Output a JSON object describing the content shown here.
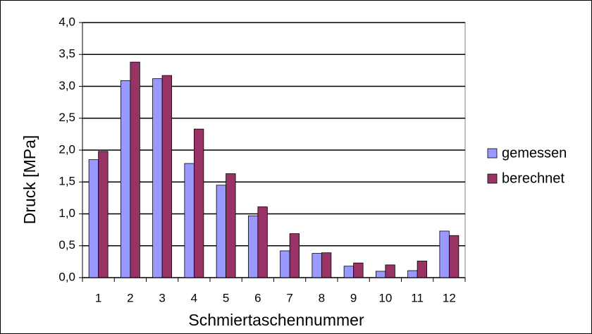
{
  "chart_data": {
    "type": "bar",
    "x_label": "Schmiertaschennummer",
    "y_label": "Druck [MPa]",
    "categories": [
      "1",
      "2",
      "3",
      "4",
      "5",
      "6",
      "7",
      "8",
      "9",
      "10",
      "11",
      "12"
    ],
    "series": [
      {
        "name": "gemessen",
        "color": "#9999ff",
        "values": [
          1.85,
          3.09,
          3.12,
          1.79,
          1.45,
          0.97,
          0.42,
          0.38,
          0.18,
          0.1,
          0.11,
          0.73
        ]
      },
      {
        "name": "berechnet",
        "color": "#993366",
        "values": [
          1.98,
          3.38,
          3.17,
          2.33,
          1.63,
          1.11,
          0.69,
          0.39,
          0.23,
          0.2,
          0.26,
          0.66
        ]
      }
    ],
    "ylim": [
      0,
      4
    ],
    "yticks": [
      {
        "value": 0,
        "label": "0,0"
      },
      {
        "value": 0.5,
        "label": "0,5"
      },
      {
        "value": 1,
        "label": "1,0"
      },
      {
        "value": 1.5,
        "label": "1,5"
      },
      {
        "value": 2,
        "label": "2,0"
      },
      {
        "value": 2.5,
        "label": "2,5"
      },
      {
        "value": 3,
        "label": "3,0"
      },
      {
        "value": 3.5,
        "label": "3,5"
      },
      {
        "value": 4,
        "label": "4,0"
      }
    ],
    "grid": true,
    "legend": "right"
  }
}
